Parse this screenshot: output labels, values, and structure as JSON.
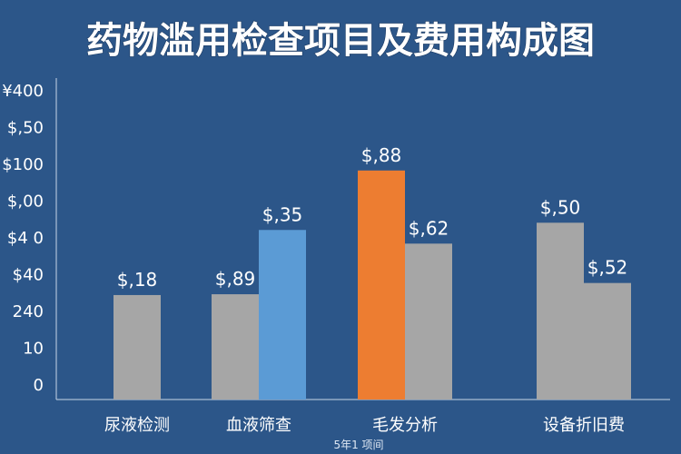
{
  "chart_data": {
    "type": "bar",
    "title": "药物滥用检查项目及费用构成图",
    "xlabel": "5年1 项间",
    "ylabel": "",
    "categories": [
      "尿液检测",
      "血液筛查",
      "毛发分析",
      "设备折旧费"
    ],
    "yticks": [
      "¥400",
      "$,50",
      "$100",
      "$,00",
      "$4 0",
      "$40",
      "240",
      "10",
      "0"
    ],
    "ylim": [
      0,
      400
    ],
    "grid": false,
    "legend": "none",
    "bars": [
      {
        "category": "尿液检测",
        "value": 130,
        "label": "$,18",
        "color": "#a6a6a6"
      },
      {
        "category": "血液筛查",
        "value": 131,
        "label": "$,89",
        "color": "#a6a6a6"
      },
      {
        "category": "血液筛查",
        "value": 211,
        "label": "$,35",
        "color": "#5b9bd5"
      },
      {
        "category": "毛发分析",
        "value": 285,
        "label": "$,88",
        "color": "#ed7d31"
      },
      {
        "category": "毛发分析",
        "value": 194,
        "label": "$,62",
        "color": "#a6a6a6"
      },
      {
        "category": "设备折旧费",
        "value": 220,
        "label": "$,50",
        "color": "#a6a6a6"
      },
      {
        "category": "设备折旧费",
        "value": 145,
        "label": "$,52",
        "color": "#a6a6a6"
      }
    ]
  }
}
